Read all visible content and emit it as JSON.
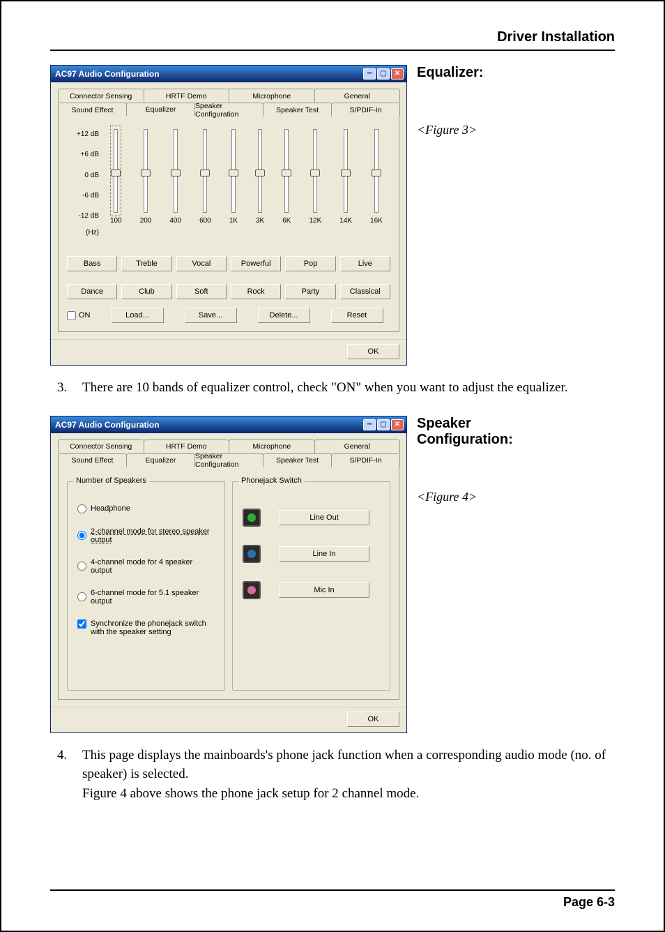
{
  "page_header": "Driver Installation",
  "page_footer": "Page 6-3",
  "eq_section_heading": "Equalizer:",
  "eq_fig_label": "<Figure 3>",
  "speaker_section_heading": "Speaker Configuration:",
  "speaker_fig_label": "<Figure 4>",
  "para3": {
    "num": "3.",
    "text": "There are 10 bands of equalizer control, check \"ON\" when you want to adjust the equalizer."
  },
  "para4": {
    "num": "4.",
    "text": "This page displays the mainboards's phone jack function when a corresponding audio mode (no. of speaker) is selected.\nFigure 4 above shows the phone jack setup for 2 channel mode."
  },
  "window": {
    "title": "AC97 Audio Configuration",
    "tabs_back": [
      "Connector Sensing",
      "HRTF Demo",
      "Microphone",
      "General"
    ],
    "tabs_front": [
      "Sound Effect",
      "Equalizer",
      "Speaker Configuration",
      "Speaker Test",
      "S/PDIF-In"
    ],
    "ok": "OK",
    "colors": {
      "titlebar_top": "#3c8cde",
      "titlebar_bottom": "#0a246a",
      "body": "#ece9d8",
      "close_btn": "#e86452"
    }
  },
  "eq": {
    "db_labels": [
      "+12 dB",
      "+6 dB",
      "0 dB",
      "-6 dB",
      "-12 dB"
    ],
    "hz_label": "(Hz)",
    "bands": [
      "100",
      "200",
      "400",
      "600",
      "1K",
      "3K",
      "6K",
      "12K",
      "14K",
      "16K"
    ],
    "slider_pos_pct": [
      48,
      48,
      48,
      48,
      48,
      48,
      48,
      48,
      48,
      48
    ],
    "presets_row1": [
      "Bass",
      "Treble",
      "Vocal",
      "Powerful",
      "Pop",
      "Live"
    ],
    "presets_row2": [
      "Dance",
      "Club",
      "Soft",
      "Rock",
      "Party",
      "Classical"
    ],
    "on_label": "ON",
    "actions": [
      "Load...",
      "Save...",
      "Delete...",
      "Reset"
    ]
  },
  "speaker": {
    "group1_title": "Number of Speakers",
    "group2_title": "Phonejack Switch",
    "radios": [
      {
        "label": "Headphone",
        "checked": false
      },
      {
        "label": "2-channel mode for stereo speaker output",
        "checked": true
      },
      {
        "label": "4-channel mode for 4 speaker output",
        "checked": false
      },
      {
        "label": "6-channel mode for 5.1 speaker output",
        "checked": false
      }
    ],
    "sync_label": "Synchronize the phonejack switch with the speaker setting",
    "jacks": [
      {
        "label": "Line Out",
        "color": "#2fae3c"
      },
      {
        "label": "Line In",
        "color": "#2f6fae"
      },
      {
        "label": "Mic In",
        "color": "#d66a9a"
      }
    ]
  }
}
